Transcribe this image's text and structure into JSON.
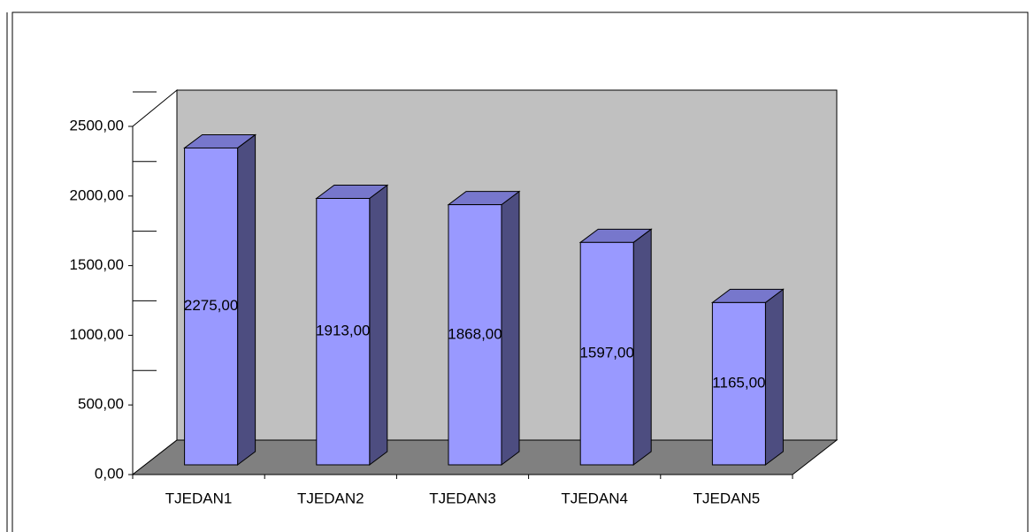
{
  "chart_data": {
    "type": "bar3d",
    "categories": [
      "TJEDAN1",
      "TJEDAN2",
      "TJEDAN3",
      "TJEDAN4",
      "TJEDAN5"
    ],
    "values": [
      2275,
      1913,
      1868,
      1597,
      1165
    ],
    "value_labels": [
      "2275,00",
      "1913,00",
      "1868,00",
      "1597,00",
      "1165,00"
    ],
    "color": "#9999ff",
    "ylim": [
      0,
      2500
    ],
    "yticks": [
      {
        "value": 0,
        "label": "0,00"
      },
      {
        "value": 500,
        "label": "500,00"
      },
      {
        "value": 1000,
        "label": "1000,00"
      },
      {
        "value": 1500,
        "label": "1500,00"
      },
      {
        "value": 2000,
        "label": "2000,00"
      },
      {
        "value": 2500,
        "label": "2500,00"
      }
    ]
  }
}
